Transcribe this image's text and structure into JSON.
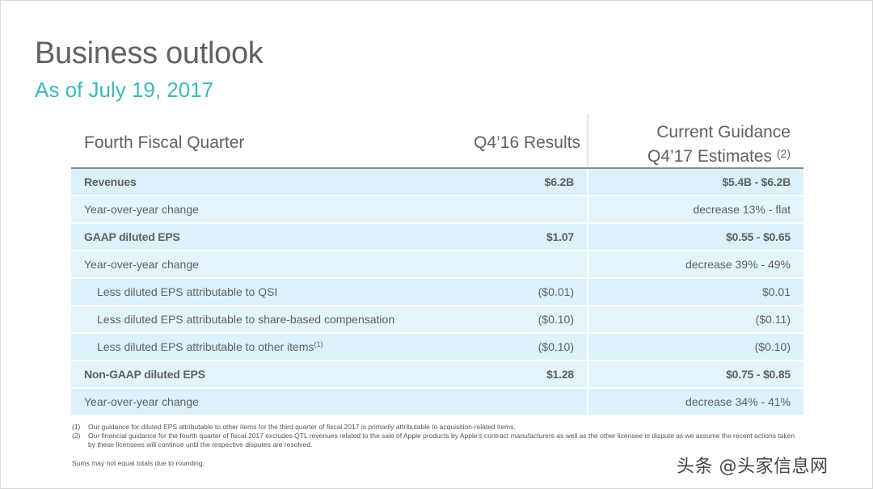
{
  "title": "Business outlook",
  "subtitle": "As of July 19, 2017",
  "table": {
    "headers": {
      "label": "Fourth Fiscal Quarter",
      "q4_16": "Q4’16 Results",
      "guidance_line1": "Current Guidance",
      "guidance_line2": "Q4’17 Estimates",
      "guidance_note": "(2)"
    },
    "rows": [
      {
        "label": "Revenues",
        "q4_16": "$6.2B",
        "guidance": "$5.4B - $6.2B"
      },
      {
        "label": "Year-over-year change",
        "q4_16": "",
        "guidance": "decrease 13% - flat"
      },
      {
        "label": "GAAP diluted EPS",
        "q4_16": "$1.07",
        "guidance": "$0.55 - $0.65"
      },
      {
        "label": "Year-over-year change",
        "q4_16": "",
        "guidance": "decrease 39% - 49%"
      },
      {
        "label": "Less diluted EPS attributable to QSI",
        "q4_16": "($0.01)",
        "guidance": "$0.01"
      },
      {
        "label": "Less diluted EPS attributable to share-based compensation",
        "q4_16": "($0.10)",
        "guidance": "($0.11)"
      },
      {
        "label": "Less diluted EPS attributable to other items",
        "note": "(1)",
        "q4_16": "($0.10)",
        "guidance": "($0.10)"
      },
      {
        "label": "Non-GAAP diluted EPS",
        "q4_16": "$1.28",
        "guidance": "$0.75 - $0.85"
      },
      {
        "label": "Year-over-year change",
        "q4_16": "",
        "guidance": "decrease 34% - 41%"
      }
    ]
  },
  "footnotes": [
    {
      "num": "(1)",
      "text": "Our guidance for diluted EPS attributable to other items for the third quarter of fiscal 2017 is primarily attributable to acquisition-related items."
    },
    {
      "num": "(2)",
      "text": "Our financial guidance for the fourth quarter of fiscal 2017 excludes QTL revenues related to the sale of Apple products by Apple’s contract manufacturers as well as the other licensee in dispute as we assume the recent actions taken by these licensees will continue until the respective disputes are resolved."
    }
  ],
  "sums_note": "Sums may not equal totals due to rounding.",
  "watermark": "头条 @头家信息网"
}
